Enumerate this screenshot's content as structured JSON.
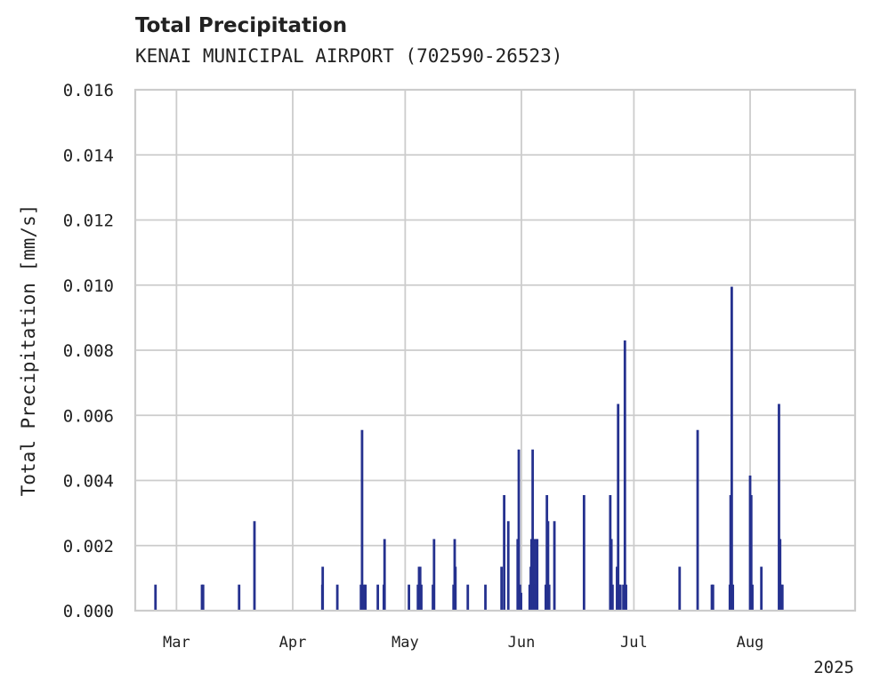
{
  "chart_data": {
    "type": "bar",
    "title": "Total Precipitation",
    "subtitle": "KENAI MUNICIPAL AIRPORT (702590-26523)",
    "xlabel": "",
    "ylabel": "Total Precipitation [mm/s]",
    "ylim": [
      0,
      0.016
    ],
    "yticks": [
      "0.000",
      "0.002",
      "0.004",
      "0.006",
      "0.008",
      "0.010",
      "0.012",
      "0.014",
      "0.016"
    ],
    "xlim_day_of_year": [
      49,
      241
    ],
    "xticks": [
      {
        "label": "Mar",
        "day": 60
      },
      {
        "label": "Apr",
        "day": 91
      },
      {
        "label": "May",
        "day": 121
      },
      {
        "label": "Jun",
        "day": 152
      },
      {
        "label": "Jul",
        "day": 182
      },
      {
        "label": "Aug",
        "day": 213
      }
    ],
    "year_label": "2025",
    "grid": true,
    "bar_color": "#25318f",
    "series": [
      {
        "name": "Total Precipitation",
        "points": [
          [
            54.4,
            0.0008
          ],
          [
            66.8,
            0.0008
          ],
          [
            67.1,
            0.0008
          ],
          [
            76.7,
            0.0008
          ],
          [
            80.8,
            0.00275
          ],
          [
            98.9,
            0.0008
          ],
          [
            99.0,
            0.00135
          ],
          [
            102.9,
            0.0008
          ],
          [
            109.2,
            0.0008
          ],
          [
            109.5,
            0.00555
          ],
          [
            110.0,
            0.0008
          ],
          [
            110.4,
            0.0008
          ],
          [
            113.7,
            0.0008
          ],
          [
            115.3,
            0.0008
          ],
          [
            115.5,
            0.0022
          ],
          [
            122.0,
            0.0008
          ],
          [
            124.4,
            0.0008
          ],
          [
            124.7,
            0.00135
          ],
          [
            125.0,
            0.00135
          ],
          [
            125.3,
            0.0008
          ],
          [
            128.4,
            0.0008
          ],
          [
            128.7,
            0.0022
          ],
          [
            133.9,
            0.0008
          ],
          [
            134.2,
            0.0022
          ],
          [
            134.4,
            0.00135
          ],
          [
            137.7,
            0.0008
          ],
          [
            142.4,
            0.0008
          ],
          [
            146.7,
            0.00135
          ],
          [
            147.4,
            0.00355
          ],
          [
            148.5,
            0.00275
          ],
          [
            151.0,
            0.0022
          ],
          [
            151.3,
            0.00495
          ],
          [
            151.6,
            0.0008
          ],
          [
            151.9,
            0.00055
          ],
          [
            154.2,
            0.0008
          ],
          [
            154.5,
            0.00135
          ],
          [
            154.7,
            0.0022
          ],
          [
            155.0,
            0.00495
          ],
          [
            155.3,
            0.0022
          ],
          [
            155.6,
            0.0008
          ],
          [
            155.9,
            0.0022
          ],
          [
            156.2,
            0.0022
          ],
          [
            158.5,
            0.0008
          ],
          [
            158.8,
            0.00355
          ],
          [
            159.1,
            0.00275
          ],
          [
            159.4,
            0.0008
          ],
          [
            160.8,
            0.00275
          ],
          [
            168.7,
            0.00355
          ],
          [
            175.7,
            0.00355
          ],
          [
            176.0,
            0.0022
          ],
          [
            176.3,
            0.0008
          ],
          [
            177.5,
            0.00135
          ],
          [
            177.8,
            0.00635
          ],
          [
            178.1,
            0.0008
          ],
          [
            178.4,
            0.0008
          ],
          [
            179.2,
            0.0008
          ],
          [
            179.6,
            0.0083
          ],
          [
            179.9,
            0.0008
          ],
          [
            194.2,
            0.00135
          ],
          [
            199.0,
            0.00555
          ],
          [
            202.8,
            0.0008
          ],
          [
            203.1,
            0.0008
          ],
          [
            207.6,
            0.0008
          ],
          [
            207.8,
            0.00355
          ],
          [
            208.1,
            0.00995
          ],
          [
            208.4,
            0.0008
          ],
          [
            213.0,
            0.00415
          ],
          [
            213.3,
            0.00355
          ],
          [
            213.6,
            0.0008
          ],
          [
            216.0,
            0.00135
          ],
          [
            220.7,
            0.00635
          ],
          [
            221.0,
            0.0022
          ],
          [
            221.3,
            0.0008
          ],
          [
            221.6,
            0.0008
          ]
        ]
      }
    ]
  }
}
